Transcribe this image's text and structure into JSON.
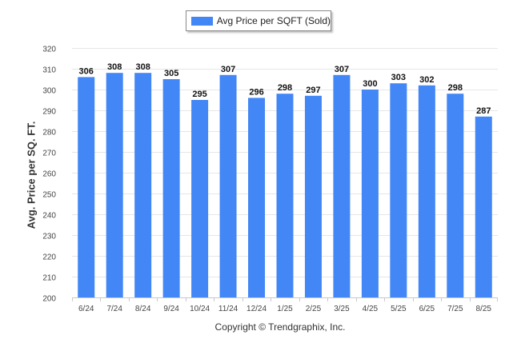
{
  "legend": {
    "label": "Avg Price per SQFT (Sold)"
  },
  "credit": "Copyright © Trendgraphix, Inc.",
  "chart_data": {
    "type": "bar",
    "categories": [
      "6/24",
      "7/24",
      "8/24",
      "9/24",
      "10/24",
      "11/24",
      "12/24",
      "1/25",
      "2/25",
      "3/25",
      "4/25",
      "5/25",
      "6/25",
      "7/25",
      "8/25"
    ],
    "series": [
      {
        "name": "Avg Price per SQFT (Sold)",
        "values": [
          306,
          308,
          308,
          305,
          295,
          307,
          296,
          298,
          297,
          307,
          300,
          303,
          302,
          298,
          287
        ]
      }
    ],
    "ylabel": "Avg. Price per SQ. FT.",
    "xlabel": "",
    "ylim": [
      200,
      320
    ],
    "yticks": [
      200,
      210,
      220,
      230,
      240,
      250,
      260,
      270,
      280,
      290,
      300,
      310,
      320
    ],
    "grid": true,
    "legend_position": "top-center",
    "data_labels": true,
    "bar_color": "#4287f5"
  }
}
